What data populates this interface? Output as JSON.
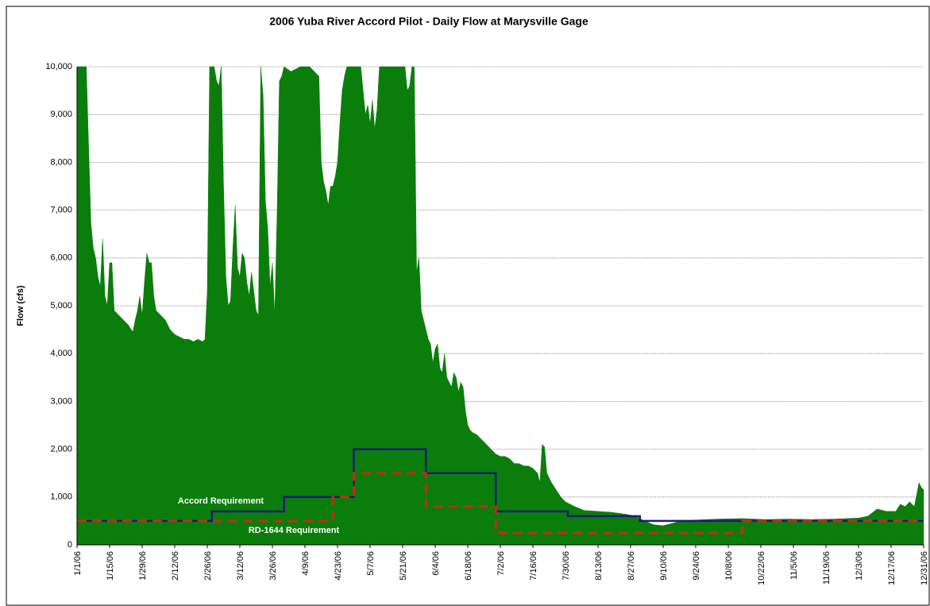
{
  "chart_data": {
    "type": "area",
    "title": "2006 Yuba River Accord Pilot - Daily Flow at Marysville Gage",
    "y_label": "Flow (cfs)",
    "xlim": [
      0,
      364
    ],
    "ylim": [
      0,
      10000
    ],
    "xticks": [
      {
        "value": 0,
        "label": "1/1/06"
      },
      {
        "value": 14,
        "label": "1/15/06"
      },
      {
        "value": 28,
        "label": "1/29/06"
      },
      {
        "value": 42,
        "label": "2/12/06"
      },
      {
        "value": 56,
        "label": "2/26/06"
      },
      {
        "value": 70,
        "label": "3/12/06"
      },
      {
        "value": 84,
        "label": "3/26/06"
      },
      {
        "value": 98,
        "label": "4/9/06"
      },
      {
        "value": 112,
        "label": "4/23/06"
      },
      {
        "value": 126,
        "label": "5/7/06"
      },
      {
        "value": 140,
        "label": "5/21/06"
      },
      {
        "value": 154,
        "label": "6/4/06"
      },
      {
        "value": 168,
        "label": "6/18/06"
      },
      {
        "value": 182,
        "label": "7/2/06"
      },
      {
        "value": 196,
        "label": "7/16/06"
      },
      {
        "value": 210,
        "label": "7/30/06"
      },
      {
        "value": 224,
        "label": "8/13/06"
      },
      {
        "value": 238,
        "label": "8/27/06"
      },
      {
        "value": 252,
        "label": "9/10/06"
      },
      {
        "value": 266,
        "label": "9/24/06"
      },
      {
        "value": 280,
        "label": "10/8/06"
      },
      {
        "value": 294,
        "label": "10/22/06"
      },
      {
        "value": 308,
        "label": "11/5/06"
      },
      {
        "value": 322,
        "label": "11/19/06"
      },
      {
        "value": 336,
        "label": "12/3/06"
      },
      {
        "value": 350,
        "label": "12/17/06"
      },
      {
        "value": 364,
        "label": "12/31/06"
      }
    ],
    "yticks": [
      0,
      {
        "value": 1000,
        "label": "1,000"
      },
      {
        "value": 2000,
        "label": "2,000"
      },
      {
        "value": 3000,
        "label": "3,000"
      },
      {
        "value": 4000,
        "label": "4,000"
      },
      {
        "value": 5000,
        "label": "5,000"
      },
      {
        "value": 6000,
        "label": "6,000"
      },
      {
        "value": 7000,
        "label": "7,000"
      },
      {
        "value": 8000,
        "label": "8,000"
      },
      {
        "value": 9000,
        "label": "9,000"
      },
      {
        "value": 10000,
        "label": "10,000"
      }
    ],
    "grid": true,
    "series": [
      {
        "color": "#0b7d0b",
        "x": [
          0,
          4,
          5,
          6,
          7,
          8,
          9,
          10,
          11,
          12,
          13,
          14,
          15,
          16,
          17,
          18,
          20,
          22,
          24,
          25,
          26,
          27,
          28,
          29,
          30,
          31,
          32,
          33,
          34,
          36,
          38,
          40,
          42,
          44,
          46,
          48,
          50,
          52,
          54,
          55,
          56,
          57,
          59,
          60,
          61,
          62,
          63,
          64,
          65,
          66,
          67,
          68,
          69,
          70,
          71,
          72,
          73,
          74,
          75,
          76,
          77,
          78,
          79,
          80,
          81,
          82,
          83,
          84,
          85,
          86,
          87,
          88,
          89,
          92,
          96,
          100,
          104,
          105,
          106,
          107,
          108,
          109,
          110,
          111,
          112,
          113,
          114,
          115,
          116,
          122,
          123,
          124,
          125,
          126,
          127,
          128,
          129,
          130,
          141,
          142,
          143,
          144,
          145,
          146,
          147,
          148,
          149,
          150,
          151,
          152,
          153,
          154,
          155,
          156,
          157,
          158,
          159,
          160,
          161,
          162,
          163,
          164,
          165,
          166,
          167,
          168,
          169,
          170,
          172,
          174,
          176,
          178,
          180,
          182,
          184,
          186,
          188,
          190,
          192,
          194,
          196,
          198,
          199,
          200,
          201,
          202,
          204,
          206,
          208,
          210,
          214,
          218,
          224,
          230,
          236,
          240,
          244,
          248,
          252,
          256,
          260,
          266,
          276,
          286,
          296,
          306,
          316,
          326,
          336,
          340,
          344,
          348,
          352,
          354,
          356,
          358,
          360,
          362,
          363,
          364
        ],
        "values": [
          10000,
          10000,
          8300,
          6700,
          6200,
          6000,
          5600,
          5400,
          6400,
          5200,
          5000,
          5900,
          5900,
          4900,
          4850,
          4800,
          4700,
          4600,
          4450,
          4700,
          4900,
          5200,
          4800,
          5500,
          6100,
          5900,
          5900,
          5200,
          4900,
          4800,
          4700,
          4500,
          4400,
          4350,
          4300,
          4300,
          4250,
          4300,
          4250,
          4300,
          5300,
          10000,
          10000,
          9700,
          9600,
          10000,
          7500,
          5600,
          5000,
          5100,
          6200,
          7100,
          5800,
          5600,
          6100,
          6000,
          5500,
          5200,
          5700,
          5300,
          4900,
          4800,
          10000,
          9400,
          7200,
          6600,
          5400,
          5900,
          4800,
          6900,
          9700,
          9800,
          10000,
          9900,
          10000,
          10000,
          9800,
          8000,
          7600,
          7400,
          7100,
          7500,
          7500,
          7700,
          8000,
          8800,
          9500,
          9800,
          10000,
          10000,
          9500,
          9000,
          9200,
          8800,
          9300,
          8700,
          9100,
          10000,
          10000,
          9500,
          9600,
          10000,
          10000,
          5700,
          6000,
          4900,
          4700,
          4500,
          4300,
          4200,
          3800,
          4100,
          4200,
          3700,
          3600,
          4000,
          3500,
          3400,
          3300,
          3600,
          3500,
          3200,
          3400,
          3300,
          2800,
          2500,
          2400,
          2350,
          2300,
          2200,
          2100,
          2000,
          1900,
          1850,
          1850,
          1800,
          1700,
          1700,
          1650,
          1650,
          1600,
          1500,
          1300,
          2100,
          2050,
          1500,
          1300,
          1150,
          1000,
          900,
          800,
          720,
          700,
          680,
          640,
          600,
          500,
          420,
          400,
          450,
          500,
          520,
          540,
          550,
          530,
          540,
          530,
          540,
          560,
          600,
          750,
          700,
          700,
          850,
          800,
          900,
          800,
          1300,
          1200,
          1150
        ]
      },
      {
        "name": "Accord Requirement",
        "color": "#1c1c78",
        "dash": false,
        "x": [
          0,
          58,
          58,
          89,
          89,
          119,
          119,
          150,
          150,
          180,
          180,
          211,
          211,
          242,
          242,
          364
        ],
        "values": [
          500,
          500,
          700,
          700,
          1000,
          1000,
          2000,
          2000,
          1500,
          1500,
          700,
          700,
          600,
          600,
          500,
          500
        ]
      },
      {
        "name": "RD-1644 Requirement",
        "color": "#c8281e",
        "dash": true,
        "x": [
          0,
          110,
          110,
          119,
          119,
          150,
          150,
          180,
          180,
          286,
          286,
          364
        ],
        "values": [
          500,
          500,
          1000,
          1000,
          1500,
          1500,
          800,
          800,
          250,
          250,
          500,
          500
        ]
      }
    ]
  }
}
